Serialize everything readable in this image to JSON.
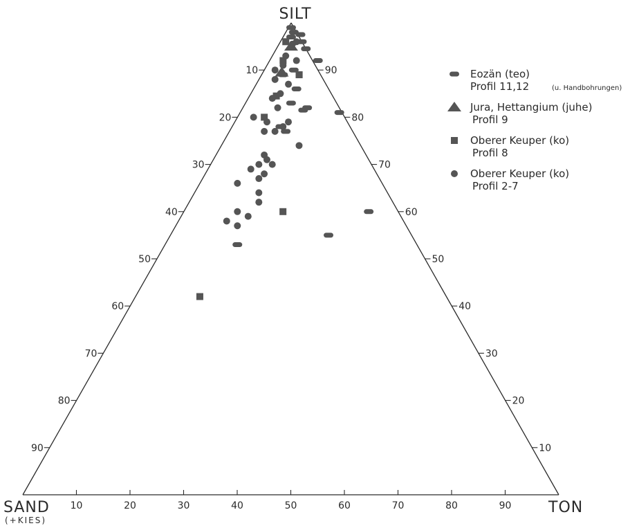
{
  "chart_data": {
    "type": "scatter",
    "subtype": "ternary",
    "corners": {
      "sand": "SAND",
      "sand_sub": "(+KIES)",
      "silt": "SILT",
      "ton": "TON"
    },
    "axes": {
      "bottom": {
        "component": "TON",
        "ticks": [
          10,
          20,
          30,
          40,
          50,
          60,
          70,
          80,
          90
        ]
      },
      "left": {
        "component": "SAND",
        "ticks": [
          10,
          20,
          30,
          40,
          50,
          60,
          70,
          80,
          90
        ]
      },
      "right": {
        "component": "SILT",
        "ticks": [
          10,
          20,
          30,
          40,
          50,
          60,
          70,
          80,
          90
        ]
      }
    },
    "grid": false,
    "legend_position": "top-right",
    "series": [
      {
        "name": "Eozän (teo)",
        "sub": "Profil  11,12",
        "note": "(u. Handbohrungen)",
        "marker": "oval",
        "points": [
          {
            "silt": 97,
            "ton": 1.5
          },
          {
            "silt": 99,
            "ton": 0.5
          },
          {
            "silt": 98,
            "ton": 1.5
          },
          {
            "silt": 97.5,
            "ton": 3
          },
          {
            "silt": 96,
            "ton": 4
          },
          {
            "silt": 94.5,
            "ton": 5.5
          },
          {
            "silt": 92,
            "ton": 9
          },
          {
            "silt": 90,
            "ton": 5.5
          },
          {
            "silt": 89,
            "ton": 4
          },
          {
            "silt": 86,
            "ton": 8
          },
          {
            "silt": 83,
            "ton": 8.5
          },
          {
            "silt": 82,
            "ton": 12
          },
          {
            "silt": 81.5,
            "ton": 11.5
          },
          {
            "silt": 78,
            "ton": 9
          },
          {
            "silt": 77,
            "ton": 10.5
          },
          {
            "silt": 55,
            "ton": 29.5
          },
          {
            "silt": 53,
            "ton": 13.5
          },
          {
            "silt": 60,
            "ton": 34.5
          },
          {
            "silt": 81,
            "ton": 18.5
          }
        ]
      },
      {
        "name": "Jura, Hettangium (juhe)",
        "sub": "Profil  9",
        "marker": "triangle",
        "points": [
          {
            "silt": 95,
            "ton": 2.5
          },
          {
            "silt": 89.5,
            "ton": 3.5
          }
        ]
      },
      {
        "name": "Oberer Keuper (ko)",
        "sub": "Profil  8",
        "marker": "square",
        "points": [
          {
            "silt": 89,
            "ton": 7
          },
          {
            "silt": 60,
            "ton": 18.5
          },
          {
            "silt": 42,
            "ton": 12
          },
          {
            "silt": 89,
            "ton": 7
          },
          {
            "silt": 84.5,
            "ton": 5
          },
          {
            "silt": 80,
            "ton": 5
          },
          {
            "silt": 92,
            "ton": 2.5
          },
          {
            "silt": 96,
            "ton": 1
          }
        ]
      },
      {
        "name": "Oberer Keuper (ko)",
        "sub": "Profil  2-7",
        "marker": "circle",
        "points": [
          {
            "silt": 96,
            "ton": 3
          },
          {
            "silt": 87,
            "ton": 6
          },
          {
            "silt": 66,
            "ton": 7
          },
          {
            "silt": 58,
            "ton": 9
          },
          {
            "silt": 60,
            "ton": 10
          },
          {
            "silt": 59,
            "ton": 12.5
          },
          {
            "silt": 57,
            "ton": 11.5
          },
          {
            "silt": 69,
            "ton": 8
          },
          {
            "silt": 70,
            "ton": 9
          },
          {
            "silt": 72,
            "ton": 9
          },
          {
            "silt": 71,
            "ton": 10
          },
          {
            "silt": 70,
            "ton": 11.5
          },
          {
            "silt": 68,
            "ton": 11
          },
          {
            "silt": 67,
            "ton": 10.5
          },
          {
            "silt": 85,
            "ton": 5.5
          },
          {
            "silt": 84,
            "ton": 4.5
          },
          {
            "silt": 82,
            "ton": 6.5
          },
          {
            "silt": 80,
            "ton": 3
          },
          {
            "silt": 79,
            "ton": 6
          },
          {
            "silt": 77,
            "ton": 6.5
          },
          {
            "silt": 77,
            "ton": 8.5
          },
          {
            "silt": 78,
            "ton": 9.5
          },
          {
            "silt": 92,
            "ton": 5
          },
          {
            "silt": 95.5,
            "ton": 2.5
          },
          {
            "silt": 93,
            "ton": 2.5
          },
          {
            "silt": 91,
            "ton": 3
          },
          {
            "silt": 90,
            "ton": 2
          },
          {
            "silt": 88,
            "ton": 3
          },
          {
            "silt": 74,
            "ton": 14.5
          },
          {
            "silt": 79,
            "ton": 10
          },
          {
            "silt": 62,
            "ton": 13
          },
          {
            "silt": 64,
            "ton": 12
          }
        ]
      }
    ]
  }
}
